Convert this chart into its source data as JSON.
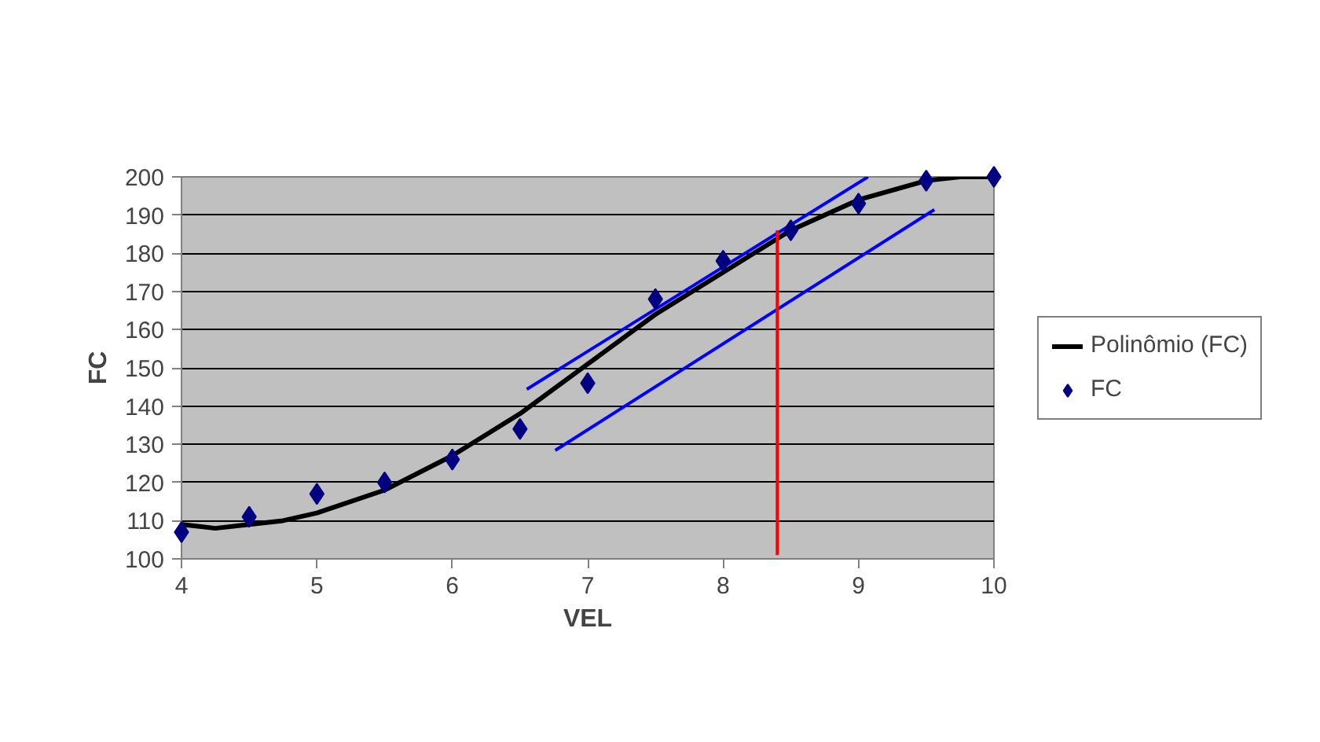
{
  "chart_data": {
    "type": "scatter",
    "xlabel": "VEL",
    "ylabel": "FC",
    "xlim": [
      4,
      10
    ],
    "ylim": [
      100,
      200
    ],
    "xticks": [
      4,
      5,
      6,
      7,
      8,
      9,
      10
    ],
    "yticks": [
      100,
      110,
      120,
      130,
      140,
      150,
      160,
      170,
      180,
      190,
      200
    ],
    "grid": "y",
    "legend": "right",
    "series": [
      {
        "name": "FC",
        "marker": "diamond",
        "color": "#000080",
        "x": [
          4,
          4.5,
          5,
          5.5,
          6,
          6.5,
          7,
          7.5,
          8,
          8.5,
          9,
          9.5,
          10
        ],
        "values": [
          107,
          111,
          117,
          120,
          126,
          134,
          146,
          168,
          178,
          186,
          193,
          199,
          200
        ]
      },
      {
        "name": "Polinômio (FC)",
        "type": "line",
        "marker": "none",
        "color": "#000000",
        "x": [
          4,
          4.25,
          4.5,
          4.75,
          5,
          5.5,
          6,
          6.5,
          7,
          7.5,
          8,
          8.5,
          9,
          9.5,
          9.75,
          10
        ],
        "values": [
          109,
          108,
          109,
          110,
          112,
          118,
          127,
          138,
          151,
          164,
          175,
          186,
          194,
          199,
          200,
          200
        ]
      },
      {
        "type": "line",
        "marker": "none",
        "color": "#0000ff",
        "x": [
          6.55,
          9.07
        ],
        "values": [
          144.4,
          200
        ]
      },
      {
        "type": "line",
        "marker": "none",
        "color": "#0000ff",
        "x": [
          6.76,
          9.56
        ],
        "values": [
          128.4,
          191.4
        ]
      },
      {
        "type": "line",
        "marker": "none",
        "color": "#ff0000",
        "x": [
          8.4,
          8.4
        ],
        "values": [
          101,
          186
        ]
      }
    ]
  }
}
